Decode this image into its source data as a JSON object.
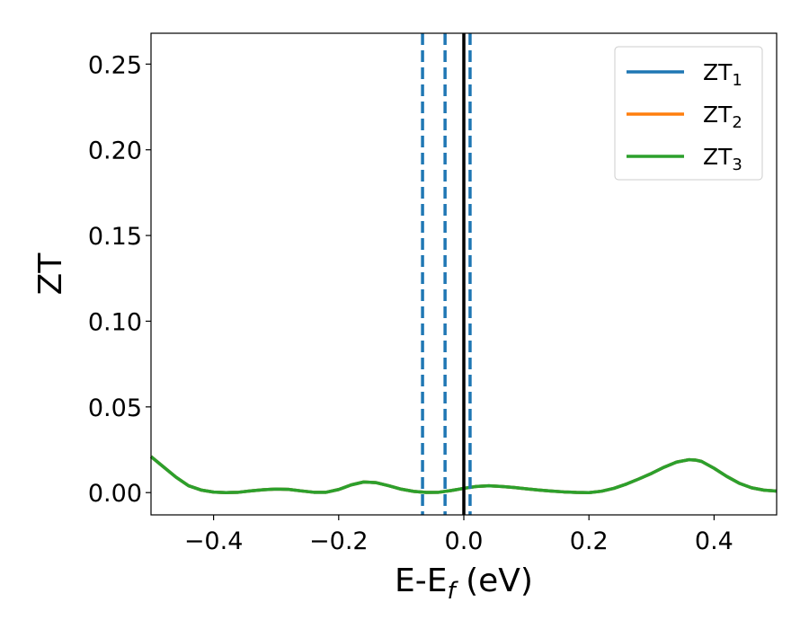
{
  "chart_data": {
    "type": "line",
    "title": "",
    "xlabel_main": "E-E",
    "xlabel_sub": "f",
    "xlabel_unit": " (eV)",
    "ylabel": "ZT",
    "xlim": [
      -0.5,
      0.5
    ],
    "ylim": [
      -0.013,
      0.268
    ],
    "xticks": [
      -0.4,
      -0.2,
      0.0,
      0.2,
      0.4
    ],
    "xtick_labels": [
      "−0.4",
      "−0.2",
      "0.0",
      "0.2",
      "0.4"
    ],
    "yticks": [
      0.0,
      0.05,
      0.1,
      0.15,
      0.2,
      0.25
    ],
    "ytick_labels": [
      "0.00",
      "0.05",
      "0.10",
      "0.15",
      "0.20",
      "0.25"
    ],
    "grid": false,
    "legend_position": "top-right",
    "x": [
      -0.5,
      -0.48,
      -0.46,
      -0.44,
      -0.42,
      -0.4,
      -0.38,
      -0.36,
      -0.34,
      -0.32,
      -0.3,
      -0.28,
      -0.26,
      -0.24,
      -0.22,
      -0.2,
      -0.18,
      -0.16,
      -0.14,
      -0.12,
      -0.1,
      -0.08,
      -0.06,
      -0.04,
      -0.02,
      0.0,
      0.02,
      0.04,
      0.06,
      0.08,
      0.1,
      0.12,
      0.14,
      0.16,
      0.18,
      0.2,
      0.22,
      0.24,
      0.26,
      0.28,
      0.3,
      0.32,
      0.34,
      0.36,
      0.37,
      0.38,
      0.4,
      0.42,
      0.44,
      0.46,
      0.48,
      0.5
    ],
    "series": [
      {
        "name_main": "ZT",
        "name_sub": "1",
        "color": "#1f77b4",
        "values": [
          0.021,
          0.015,
          0.009,
          0.004,
          0.0015,
          0.0003,
          0.0,
          0.0002,
          0.001,
          0.0017,
          0.0021,
          0.0019,
          0.001,
          0.0002,
          0.0002,
          0.0018,
          0.0045,
          0.0062,
          0.0058,
          0.004,
          0.002,
          0.0007,
          0.0001,
          0.0002,
          0.0012,
          0.0025,
          0.0036,
          0.004,
          0.0036,
          0.003,
          0.0022,
          0.0015,
          0.0009,
          0.0004,
          0.0001,
          0.0,
          0.0008,
          0.0025,
          0.005,
          0.008,
          0.0112,
          0.0148,
          0.0178,
          0.0192,
          0.019,
          0.0182,
          0.0142,
          0.0095,
          0.0055,
          0.0028,
          0.0014,
          0.0009
        ]
      },
      {
        "name_main": "ZT",
        "name_sub": "2",
        "color": "#ff7f0e",
        "values": [
          0.021,
          0.015,
          0.009,
          0.004,
          0.0015,
          0.0003,
          0.0,
          0.0002,
          0.001,
          0.0017,
          0.0021,
          0.0019,
          0.001,
          0.0002,
          0.0002,
          0.0018,
          0.0045,
          0.0062,
          0.0058,
          0.004,
          0.002,
          0.0007,
          0.0001,
          0.0002,
          0.0012,
          0.0025,
          0.0036,
          0.004,
          0.0036,
          0.003,
          0.0022,
          0.0015,
          0.0009,
          0.0004,
          0.0001,
          0.0,
          0.0008,
          0.0025,
          0.005,
          0.008,
          0.0112,
          0.0148,
          0.0178,
          0.0192,
          0.019,
          0.0182,
          0.0142,
          0.0095,
          0.0055,
          0.0028,
          0.0014,
          0.0009
        ]
      },
      {
        "name_main": "ZT",
        "name_sub": "3",
        "color": "#2ca02c",
        "values": [
          0.021,
          0.015,
          0.009,
          0.004,
          0.0015,
          0.0003,
          0.0,
          0.0002,
          0.001,
          0.0017,
          0.0021,
          0.0019,
          0.001,
          0.0002,
          0.0002,
          0.0018,
          0.0045,
          0.0062,
          0.0058,
          0.004,
          0.002,
          0.0007,
          0.0001,
          0.0002,
          0.0012,
          0.0025,
          0.0036,
          0.004,
          0.0036,
          0.003,
          0.0022,
          0.0015,
          0.0009,
          0.0004,
          0.0001,
          0.0,
          0.0008,
          0.0025,
          0.005,
          0.008,
          0.0112,
          0.0148,
          0.0178,
          0.0192,
          0.019,
          0.0182,
          0.0142,
          0.0095,
          0.0055,
          0.0028,
          0.0014,
          0.0009
        ]
      }
    ],
    "vertical_lines": [
      {
        "x": -0.066,
        "style": "dashed",
        "color": "#1f77b4"
      },
      {
        "x": -0.03,
        "style": "dashed",
        "color": "#1f77b4"
      },
      {
        "x": 0.01,
        "style": "dashed",
        "color": "#1f77b4"
      },
      {
        "x": 0.0,
        "style": "solid",
        "color": "#000000"
      }
    ]
  }
}
